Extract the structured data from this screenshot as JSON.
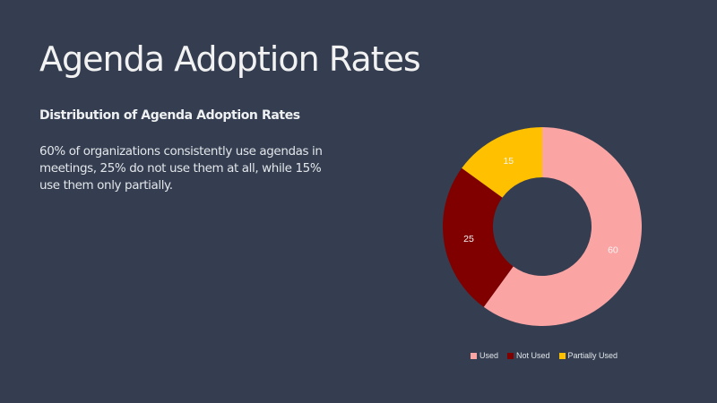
{
  "slide": {
    "title": "Agenda Adoption Rates",
    "subtitle": "Distribution of Agenda Adoption Rates",
    "body": "60% of organizations consistently use agendas in meetings, 25% do not use them at all, while 15% use them only partially."
  },
  "chart_data": {
    "type": "pie",
    "variant": "donut",
    "categories": [
      "Used",
      "Not Used",
      "Partially Used"
    ],
    "values": [
      60,
      25,
      15
    ],
    "colors": [
      "#FBA4A4",
      "#800000",
      "#FFC000"
    ],
    "data_labels": [
      "60",
      "25",
      "15"
    ],
    "legend_position": "bottom",
    "start_angle_deg": 0,
    "direction": "clockwise"
  }
}
